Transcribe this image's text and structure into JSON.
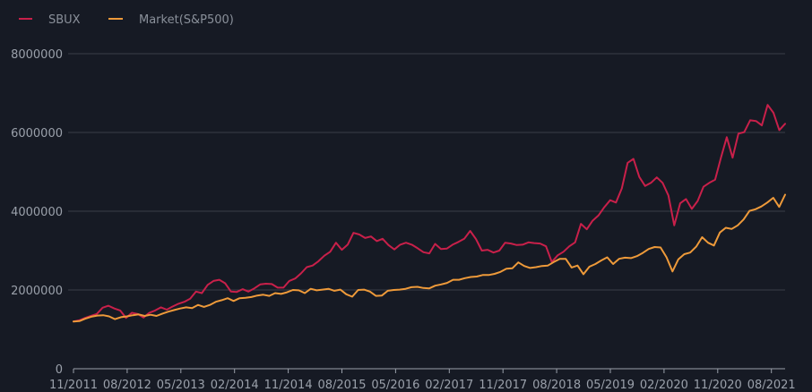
{
  "colors": {
    "background": "#161a24",
    "grid": "#3b3f48",
    "axis": "#9aa0aa",
    "text": "#9aa0aa",
    "legend_text": "#8a909a"
  },
  "chart_data": {
    "type": "line",
    "x_tick_labels": [
      "11/2011",
      "08/2012",
      "05/2013",
      "02/2014",
      "11/2014",
      "08/2015",
      "05/2016",
      "02/2017",
      "11/2017",
      "08/2018",
      "05/2019",
      "02/2020",
      "11/2020",
      "08/2021"
    ],
    "y_tick_labels": [
      "0",
      "2000000",
      "4000000",
      "6000000",
      "8000000"
    ],
    "ylim": [
      0,
      8000000
    ],
    "grid": "horizontal",
    "legend_position": "top-left",
    "x_start": "11/2011",
    "x_end": "10/2021",
    "series": [
      {
        "name": "SBUX",
        "color": "#c8204a",
        "values": [
          1200000,
          1230000,
          1290000,
          1340000,
          1390000,
          1550000,
          1600000,
          1530000,
          1480000,
          1290000,
          1420000,
          1390000,
          1300000,
          1420000,
          1480000,
          1560000,
          1500000,
          1580000,
          1650000,
          1700000,
          1780000,
          1960000,
          1920000,
          2130000,
          2230000,
          2260000,
          2170000,
          1960000,
          1950000,
          2020000,
          1960000,
          2040000,
          2140000,
          2160000,
          2150000,
          2060000,
          2060000,
          2230000,
          2290000,
          2420000,
          2580000,
          2620000,
          2730000,
          2870000,
          2970000,
          3200000,
          3020000,
          3150000,
          3450000,
          3410000,
          3320000,
          3360000,
          3240000,
          3300000,
          3140000,
          3030000,
          3150000,
          3200000,
          3150000,
          3060000,
          2960000,
          2930000,
          3170000,
          3040000,
          3050000,
          3150000,
          3220000,
          3300000,
          3500000,
          3290000,
          3000000,
          3020000,
          2950000,
          3000000,
          3200000,
          3180000,
          3140000,
          3150000,
          3210000,
          3190000,
          3180000,
          3110000,
          2710000,
          2880000,
          2970000,
          3110000,
          3210000,
          3680000,
          3540000,
          3760000,
          3890000,
          4100000,
          4280000,
          4220000,
          4580000,
          5230000,
          5330000,
          4870000,
          4640000,
          4720000,
          4860000,
          4720000,
          4400000,
          3640000,
          4200000,
          4310000,
          4060000,
          4260000,
          4620000,
          4720000,
          4800000,
          5360000,
          5880000,
          5360000,
          5970000,
          6010000,
          6310000,
          6290000,
          6180000,
          6700000,
          6500000,
          6060000,
          6220000
        ]
      },
      {
        "name": "Market(S&P500)",
        "color": "#ee9a3a",
        "values": [
          1200000,
          1210000,
          1270000,
          1320000,
          1350000,
          1360000,
          1330000,
          1260000,
          1310000,
          1330000,
          1360000,
          1380000,
          1340000,
          1370000,
          1340000,
          1400000,
          1450000,
          1490000,
          1530000,
          1560000,
          1540000,
          1620000,
          1570000,
          1620000,
          1700000,
          1740000,
          1790000,
          1720000,
          1790000,
          1800000,
          1820000,
          1860000,
          1880000,
          1850000,
          1920000,
          1900000,
          1940000,
          2000000,
          1990000,
          1920000,
          2030000,
          1990000,
          2010000,
          2030000,
          1980000,
          2010000,
          1890000,
          1830000,
          2000000,
          2010000,
          1960000,
          1850000,
          1860000,
          1980000,
          2000000,
          2010000,
          2030000,
          2070000,
          2080000,
          2050000,
          2040000,
          2110000,
          2140000,
          2180000,
          2260000,
          2260000,
          2300000,
          2330000,
          2340000,
          2380000,
          2380000,
          2410000,
          2460000,
          2540000,
          2550000,
          2700000,
          2610000,
          2560000,
          2580000,
          2610000,
          2620000,
          2710000,
          2790000,
          2790000,
          2570000,
          2620000,
          2400000,
          2590000,
          2660000,
          2750000,
          2830000,
          2660000,
          2790000,
          2820000,
          2810000,
          2860000,
          2940000,
          3040000,
          3090000,
          3080000,
          2830000,
          2470000,
          2780000,
          2910000,
          2950000,
          3100000,
          3340000,
          3200000,
          3130000,
          3460000,
          3580000,
          3550000,
          3640000,
          3790000,
          4010000,
          4050000,
          4120000,
          4220000,
          4340000,
          4110000,
          4420000
        ]
      }
    ]
  }
}
